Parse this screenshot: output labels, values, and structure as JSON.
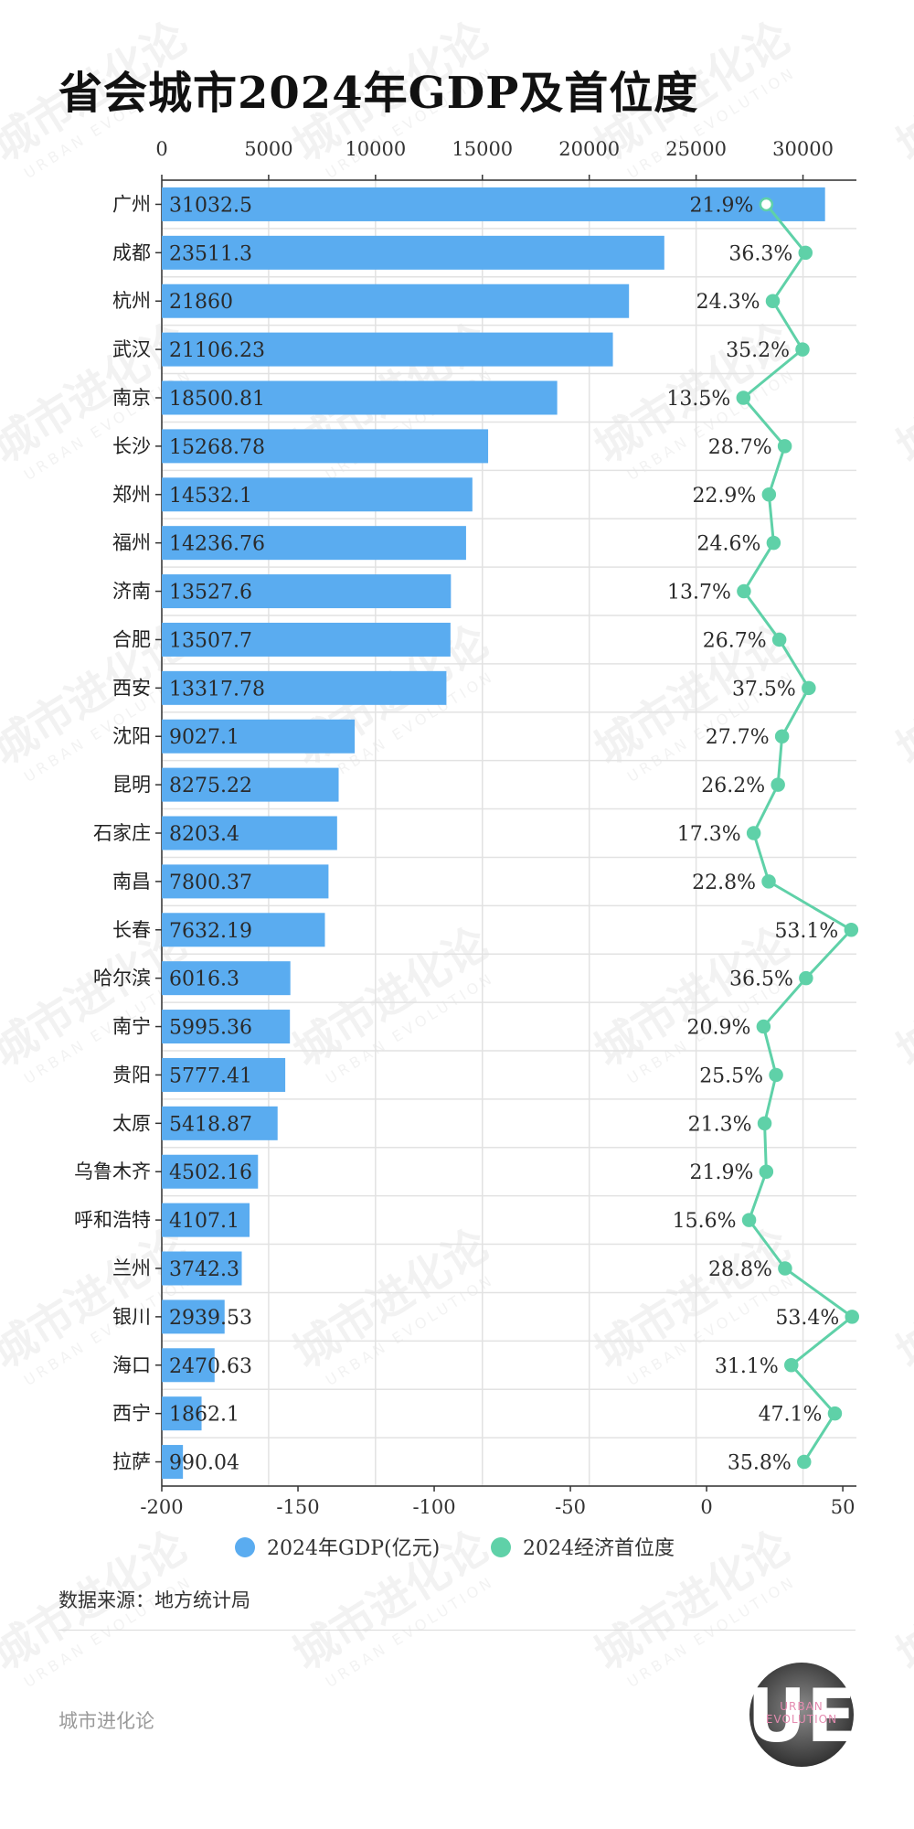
{
  "title": "省会城市2024年GDP及首位度",
  "source": "数据来源：地方统计局",
  "brand": "城市进化论",
  "watermark": {
    "cn": "城市进化论",
    "en": "URBAN EVOLUTION"
  },
  "logo": {
    "mark": "UE",
    "text1": "URBAN",
    "text2": "EVOLUTION"
  },
  "colors": {
    "bar": "#5aacf0",
    "line": "#5fd1a8",
    "grid": "#e2e2e2",
    "axis": "#333333"
  },
  "legend": [
    {
      "label": "2024年GDP(亿元)",
      "color": "#5aacf0"
    },
    {
      "label": "2024经济首位度",
      "color": "#5fd1a8"
    }
  ],
  "chart_data": {
    "type": "bar",
    "categories": [
      "广州",
      "成都",
      "杭州",
      "武汉",
      "南京",
      "长沙",
      "郑州",
      "福州",
      "济南",
      "合肥",
      "西安",
      "沈阳",
      "昆明",
      "石家庄",
      "南昌",
      "长春",
      "哈尔滨",
      "南宁",
      "贵阳",
      "太原",
      "乌鲁木齐",
      "呼和浩特",
      "兰州",
      "银川",
      "海口",
      "西宁",
      "拉萨"
    ],
    "series": [
      {
        "name": "2024年GDP(亿元)",
        "type": "bar",
        "axis": "top",
        "values": [
          31032.5,
          23511.3,
          21860,
          21106.23,
          18500.81,
          15268.78,
          14532.1,
          14236.76,
          13527.6,
          13507.7,
          13317.78,
          9027.1,
          8275.22,
          8203.4,
          7800.37,
          7632.19,
          6016.3,
          5995.36,
          5777.41,
          5418.87,
          4502.16,
          4107.1,
          3742.3,
          2939.53,
          2470.63,
          1862.1,
          990.04
        ],
        "labels": [
          "31032.5",
          "23511.3",
          "21860",
          "21106.23",
          "18500.81",
          "15268.78",
          "14532.1",
          "14236.76",
          "13527.6",
          "13507.7",
          "13317.78",
          "9027.1",
          "8275.22",
          "8203.4",
          "7800.37",
          "7632.19",
          "6016.3",
          "5995.36",
          "5777.41",
          "5418.87",
          "4502.16",
          "4107.1",
          "3742.3",
          "2939.53",
          "2470.63",
          "1862.1",
          "990.04"
        ]
      },
      {
        "name": "2024经济首位度",
        "type": "line",
        "axis": "bottom",
        "values": [
          21.9,
          36.3,
          24.3,
          35.2,
          13.5,
          28.7,
          22.9,
          24.6,
          13.7,
          26.7,
          37.5,
          27.7,
          26.2,
          17.3,
          22.8,
          53.1,
          36.5,
          20.9,
          25.5,
          21.3,
          21.9,
          15.6,
          28.8,
          53.4,
          31.1,
          47.1,
          35.8
        ],
        "labels": [
          "21.9%",
          "36.3%",
          "24.3%",
          "35.2%",
          "13.5%",
          "28.7%",
          "22.9%",
          "24.6%",
          "13.7%",
          "26.7%",
          "37.5%",
          "27.7%",
          "26.2%",
          "17.3%",
          "22.8%",
          "53.1%",
          "36.5%",
          "20.9%",
          "25.5%",
          "21.3%",
          "21.9%",
          "15.6%",
          "28.8%",
          "53.4%",
          "31.1%",
          "47.1%",
          "35.8%"
        ]
      }
    ],
    "top_axis": {
      "range": [
        0,
        32500
      ],
      "ticks": [
        0,
        5000,
        10000,
        15000,
        20000,
        25000,
        30000
      ]
    },
    "bottom_axis": {
      "range": [
        -200,
        55
      ],
      "ticks": [
        -200,
        -150,
        -100,
        -50,
        0,
        50
      ]
    },
    "grid": true,
    "legend_position": "bottom"
  }
}
